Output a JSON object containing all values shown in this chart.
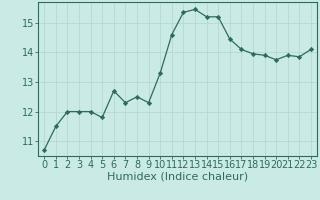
{
  "x": [
    0,
    1,
    2,
    3,
    4,
    5,
    6,
    7,
    8,
    9,
    10,
    11,
    12,
    13,
    14,
    15,
    16,
    17,
    18,
    19,
    20,
    21,
    22,
    23
  ],
  "y": [
    10.7,
    11.5,
    12.0,
    12.0,
    12.0,
    11.8,
    12.7,
    12.3,
    12.5,
    12.3,
    13.3,
    14.6,
    15.35,
    15.45,
    15.2,
    15.2,
    14.45,
    14.1,
    13.95,
    13.9,
    13.75,
    13.9,
    13.85,
    14.1
  ],
  "xlabel": "Humidex (Indice chaleur)",
  "ylim": [
    10.5,
    15.7
  ],
  "xlim": [
    -0.5,
    23.5
  ],
  "yticks": [
    11,
    12,
    13,
    14,
    15
  ],
  "xticks": [
    0,
    1,
    2,
    3,
    4,
    5,
    6,
    7,
    8,
    9,
    10,
    11,
    12,
    13,
    14,
    15,
    16,
    17,
    18,
    19,
    20,
    21,
    22,
    23
  ],
  "line_color": "#2d6b5e",
  "marker": "D",
  "marker_size": 2.2,
  "bg_color": "#caeae5",
  "grid_color": "#b8d8d4",
  "axis_color": "#2d6b5e",
  "tick_label_color": "#2d6b5e",
  "xlabel_color": "#2d6b5e",
  "xlabel_fontsize": 8,
  "tick_fontsize": 7
}
